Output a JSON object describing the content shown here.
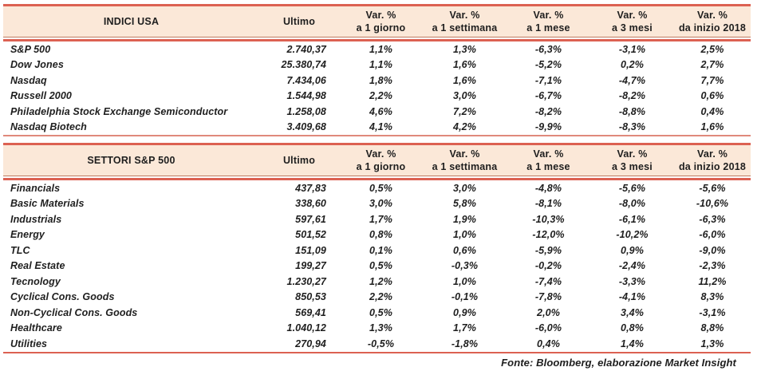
{
  "colors": {
    "accent_red": "#dc6152",
    "header_bg": "#fbe8d8",
    "sep_dark": "#bd7a61",
    "rule_light_pink": "#e0897b",
    "text": "#1e1e1e"
  },
  "header": {
    "value_col": "Ultimo",
    "var_label": "Var. %",
    "periods": [
      "a 1 giorno",
      "a 1 settimana",
      "a 1 mese",
      "a 3 mesi",
      "da inizio 2018"
    ]
  },
  "tables": [
    {
      "title": "INDICI USA",
      "rows": [
        {
          "name": "S&P 500",
          "ultimo": "2.740,37",
          "vars": [
            "1,1%",
            "1,3%",
            "-6,3%",
            "-3,1%",
            "2,5%"
          ]
        },
        {
          "name": "Dow Jones",
          "ultimo": "25.380,74",
          "vars": [
            "1,1%",
            "1,6%",
            "-5,2%",
            "0,2%",
            "2,7%"
          ]
        },
        {
          "name": "Nasdaq",
          "ultimo": "7.434,06",
          "vars": [
            "1,8%",
            "1,6%",
            "-7,1%",
            "-4,7%",
            "7,7%"
          ]
        },
        {
          "name": "Russell 2000",
          "ultimo": "1.544,98",
          "vars": [
            "2,2%",
            "3,0%",
            "-6,7%",
            "-8,2%",
            "0,6%"
          ]
        },
        {
          "name": "Philadelphia Stock Exchange Semiconductor",
          "ultimo": "1.258,08",
          "vars": [
            "4,6%",
            "7,2%",
            "-8,2%",
            "-8,8%",
            "0,4%"
          ]
        },
        {
          "name": "Nasdaq Biotech",
          "ultimo": "3.409,68",
          "vars": [
            "4,1%",
            "4,2%",
            "-9,9%",
            "-8,3%",
            "1,6%"
          ]
        }
      ]
    },
    {
      "title": "SETTORI S&P 500",
      "rows": [
        {
          "name": "Financials",
          "ultimo": "437,83",
          "vars": [
            "0,5%",
            "3,0%",
            "-4,8%",
            "-5,6%",
            "-5,6%"
          ]
        },
        {
          "name": "Basic Materials",
          "ultimo": "338,60",
          "vars": [
            "3,0%",
            "5,8%",
            "-8,1%",
            "-8,0%",
            "-10,6%"
          ]
        },
        {
          "name": "Industrials",
          "ultimo": "597,61",
          "vars": [
            "1,7%",
            "1,9%",
            "-10,3%",
            "-6,1%",
            "-6,3%"
          ]
        },
        {
          "name": "Energy",
          "ultimo": "501,52",
          "vars": [
            "0,8%",
            "1,0%",
            "-12,0%",
            "-10,2%",
            "-6,0%"
          ]
        },
        {
          "name": "TLC",
          "ultimo": "151,09",
          "vars": [
            "0,1%",
            "0,6%",
            "-5,9%",
            "0,9%",
            "-9,0%"
          ]
        },
        {
          "name": "Real Estate",
          "ultimo": "199,27",
          "vars": [
            "0,5%",
            "-0,3%",
            "-0,2%",
            "-2,4%",
            "-2,3%"
          ]
        },
        {
          "name": "Tecnology",
          "ultimo": "1.230,27",
          "vars": [
            "1,2%",
            "1,0%",
            "-7,4%",
            "-3,3%",
            "11,2%"
          ]
        },
        {
          "name": "Cyclical Cons. Goods",
          "ultimo": "850,53",
          "vars": [
            "2,2%",
            "-0,1%",
            "-7,8%",
            "-4,1%",
            "8,3%"
          ]
        },
        {
          "name": "Non-Cyclical Cons. Goods",
          "ultimo": "569,41",
          "vars": [
            "0,5%",
            "0,9%",
            "2,0%",
            "3,4%",
            "-3,1%"
          ]
        },
        {
          "name": "Healthcare",
          "ultimo": "1.040,12",
          "vars": [
            "1,3%",
            "1,7%",
            "-6,0%",
            "0,8%",
            "8,8%"
          ]
        },
        {
          "name": "Utilities",
          "ultimo": "270,94",
          "vars": [
            "-0,5%",
            "-1,8%",
            "0,4%",
            "1,4%",
            "1,3%"
          ]
        }
      ]
    }
  ],
  "footer": {
    "source": "Fonte: Bloomberg, elaborazione Market Insight"
  }
}
